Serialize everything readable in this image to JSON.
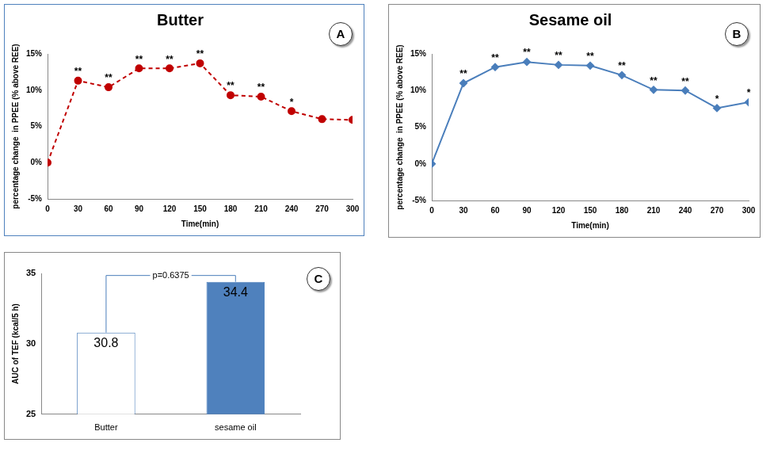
{
  "chart_data": [
    {
      "type": "line",
      "panel": "A",
      "title": "Butter",
      "x": [
        0,
        30,
        60,
        90,
        120,
        150,
        180,
        210,
        240,
        270,
        300
      ],
      "values": [
        0,
        11.3,
        10.4,
        13.0,
        13.0,
        13.7,
        9.3,
        9.1,
        7.1,
        6.0,
        5.9
      ],
      "annotations": [
        null,
        "**",
        "**",
        "**",
        "**",
        "**",
        "**",
        "**",
        "*",
        null,
        null
      ],
      "color": "#c00000",
      "marker": "circle",
      "line_style": "dashed",
      "x_label": "Time(min)",
      "y_label": "percentage change  in PPEE (% above REE)",
      "xlim": [
        0,
        300
      ],
      "xticks": [
        0,
        30,
        60,
        90,
        120,
        150,
        180,
        210,
        240,
        270,
        300
      ],
      "ylim": [
        -5,
        15
      ],
      "yticks": [
        {
          "value": -5,
          "label": "-5%"
        },
        {
          "value": 0,
          "label": "0%"
        },
        {
          "value": 5,
          "label": "5%"
        },
        {
          "value": 10,
          "label": "10%"
        },
        {
          "value": 15,
          "label": "15%"
        }
      ],
      "grid": false
    },
    {
      "type": "line",
      "panel": "B",
      "title": "Sesame oil",
      "x": [
        0,
        30,
        60,
        90,
        120,
        150,
        180,
        210,
        240,
        270,
        300
      ],
      "values": [
        0,
        11.0,
        13.2,
        13.9,
        13.5,
        13.4,
        12.1,
        10.1,
        10.0,
        7.6,
        8.4
      ],
      "annotations": [
        null,
        "**",
        "**",
        "**",
        "**",
        "**",
        "**",
        "**",
        "**",
        "*",
        "*"
      ],
      "color": "#4a7ebb",
      "marker": "diamond",
      "line_style": "solid",
      "x_label": "Time(min)",
      "y_label": "percentage change  in PPEE (% above REE)",
      "xlim": [
        0,
        300
      ],
      "xticks": [
        0,
        30,
        60,
        90,
        120,
        150,
        180,
        210,
        240,
        270,
        300
      ],
      "ylim": [
        -5,
        15
      ],
      "yticks": [
        {
          "value": -5,
          "label": "-5%"
        },
        {
          "value": 0,
          "label": "0%"
        },
        {
          "value": 5,
          "label": "5%"
        },
        {
          "value": 10,
          "label": "10%"
        },
        {
          "value": 15,
          "label": "15%"
        }
      ],
      "grid": false
    },
    {
      "type": "bar",
      "panel": "C",
      "categories": [
        "Butter",
        "sesame oil"
      ],
      "values": [
        30.8,
        34.4
      ],
      "colors": [
        "#ffffff",
        "#4f81bd"
      ],
      "data_labels": true,
      "annotation": "p=0.6375",
      "y_label": "AUC of TEF (kcal/5 h)",
      "ylim": [
        25,
        35
      ],
      "yticks": [
        25,
        30,
        35
      ],
      "grid": false
    }
  ]
}
